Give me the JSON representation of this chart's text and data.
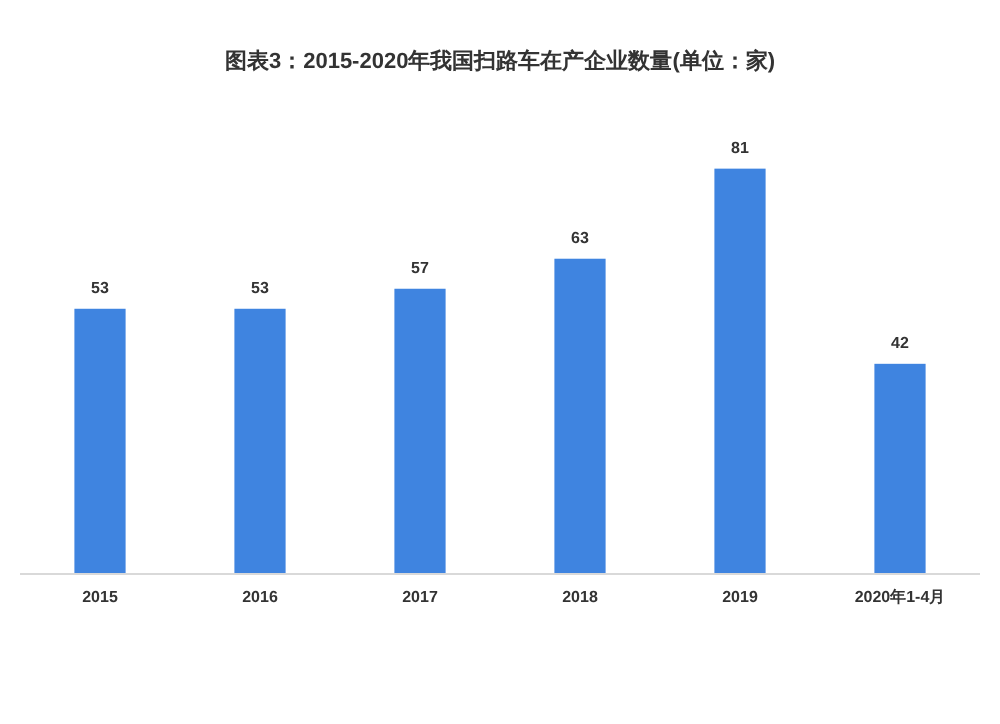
{
  "chart_data": {
    "type": "bar",
    "title": "图表3：2015-2020年我国扫路车在产企业数量(单位：家)",
    "categories": [
      "2015",
      "2016",
      "2017",
      "2018",
      "2019",
      "2020年1-4月"
    ],
    "values": [
      53,
      53,
      57,
      63,
      81,
      42
    ],
    "color": "#3f84e0",
    "data_labels": true
  }
}
